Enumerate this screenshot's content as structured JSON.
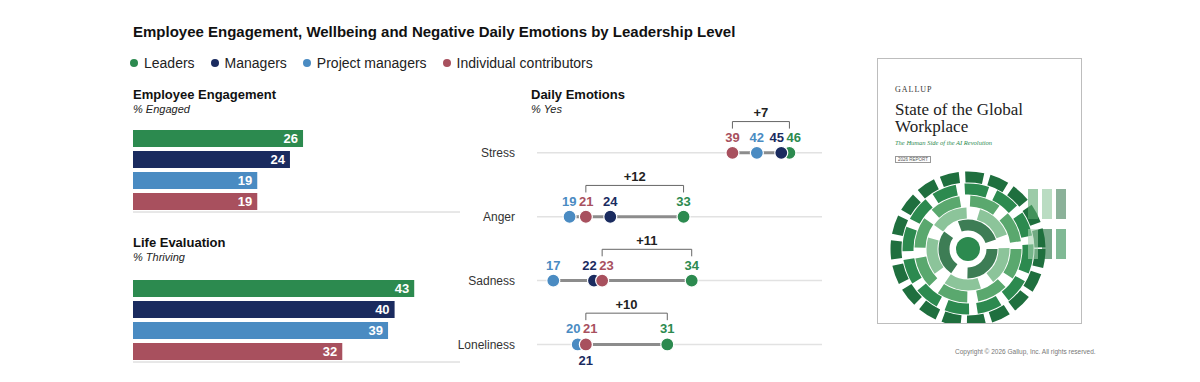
{
  "title": "Employee Engagement, Wellbeing and Negative Daily Emotions by Leadership Level",
  "chart_data": [
    {
      "type": "bar",
      "title": "Employee Engagement",
      "subtitle": "% Engaged",
      "orientation": "horizontal",
      "categories": [
        "Leaders",
        "Managers",
        "Project managers",
        "Individual contributors"
      ],
      "values": [
        26,
        24,
        19,
        19
      ],
      "colors": [
        "#2c8a4f",
        "#1a2b5f",
        "#4a8bc2",
        "#a8505e"
      ],
      "xlim": [
        0,
        50
      ],
      "tick_labels": false,
      "data_labels": true
    },
    {
      "type": "bar",
      "title": "Life Evaluation",
      "subtitle": "% Thriving",
      "orientation": "horizontal",
      "categories": [
        "Leaders",
        "Managers",
        "Project managers",
        "Individual contributors"
      ],
      "values": [
        43,
        40,
        39,
        32
      ],
      "colors": [
        "#2c8a4f",
        "#1a2b5f",
        "#4a8bc2",
        "#a8505e"
      ],
      "xlim": [
        0,
        50
      ],
      "tick_labels": false,
      "data_labels": true
    },
    {
      "type": "dot",
      "title": "Daily Emotions",
      "subtitle": "% Yes",
      "categories": [
        "Stress",
        "Anger",
        "Sadness",
        "Loneliness"
      ],
      "series": [
        {
          "name": "Leaders",
          "color": "#2c8a4f",
          "values": [
            46,
            33,
            34,
            31
          ]
        },
        {
          "name": "Managers",
          "color": "#1a2b5f",
          "values": [
            45,
            24,
            22,
            21
          ]
        },
        {
          "name": "Project managers",
          "color": "#4a8bc2",
          "values": [
            42,
            19,
            17,
            20
          ]
        },
        {
          "name": "Individual contributors",
          "color": "#a8505e",
          "values": [
            39,
            21,
            23,
            21
          ]
        }
      ],
      "annotations": [
        "+7",
        "+12",
        "+11",
        "+10"
      ],
      "xlim": [
        15,
        50
      ],
      "tick_labels": "y",
      "data_labels": true,
      "legend": "top-left"
    }
  ],
  "cover": {
    "publisher": "GALLUP",
    "title": "State of the Global Workplace",
    "subtitle": "The Human Side of the AI Revolution",
    "edition": "2026 REPORT"
  },
  "copyright": "Copyright © 2026 Gallup, Inc. All rights reserved."
}
